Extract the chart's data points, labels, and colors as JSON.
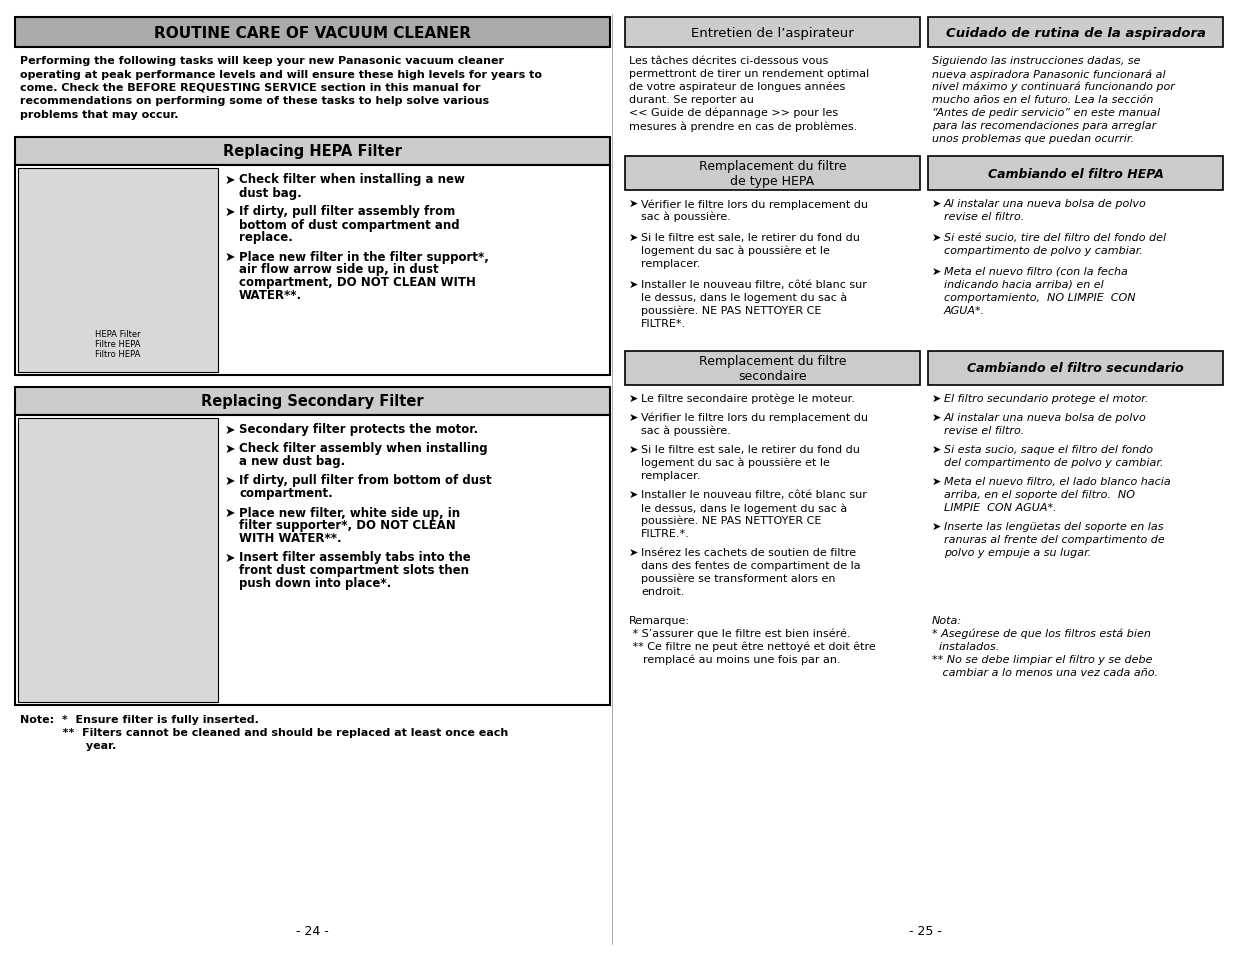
{
  "page_bg": "#ffffff",
  "header_bg": "#aaaaaa",
  "box_bg": "#cccccc",
  "left_title": "ROUTINE CARE OF VACUUM CLEANER",
  "left_intro_line1": "Performing the following tasks will keep your new Panasonic vacuum cleaner",
  "left_intro_line2": "operating at peak performance levels and will ensure these high levels for years to",
  "left_intro_line3": "come. Check the BEFORE REQUESTING SERVICE section in this manual for",
  "left_intro_line4": "recommendations on performing some of these tasks to help solve various",
  "left_intro_line5": "problems that may occur.",
  "hepa_title": "Replacing HEPA Filter",
  "hepa_label": "HEPA Filter\nFiltre HEPA\nFiltro HEPA",
  "hepa_bullets": [
    [
      "Check filter when installing a new",
      "dust bag."
    ],
    [
      "If dirty, pull filter assembly from",
      "bottom of dust compartment and",
      "replace."
    ],
    [
      "Place new filter in the filter support*,",
      "air flow arrow side up, in dust",
      "compartment, DO NOT CLEAN WITH",
      "WATER**."
    ]
  ],
  "hepa_bold_prefix": [
    "",
    "If dirty, pull filter assembly from",
    "Place new filter in the filter support*,"
  ],
  "secondary_title": "Replacing Secondary Filter",
  "secondary_bullets": [
    [
      "Secondary filter protects the motor."
    ],
    [
      "Check filter assembly when installing",
      "a new dust bag."
    ],
    [
      "If dirty, pull filter from bottom of dust",
      "compartment."
    ],
    [
      "Place new filter, white side up, in",
      "filter supporter*, DO NOT CLEAN",
      "WITH WATER**."
    ],
    [
      "Insert filter assembly tabs into the",
      "front dust compartment slots then",
      "push down into place*."
    ]
  ],
  "note_line1": "Note:  *  Ensure filter is fully inserted.",
  "note_line2": "           **  Filters cannot be cleaned and should be replaced at least once each",
  "note_line3": "                 year.",
  "page_left": "- 24 -",
  "page_right": "- 25 -",
  "fr_routine_title": "Entretien de l’aspirateur",
  "es_routine_title": "Cuidado de rutina de la aspiradora",
  "fr_routine_body": [
    "Les tâches décrites ci-dessous vous",
    "permettront de tirer un rendement optimal",
    "de votre aspirateur de longues années",
    "durant. Se reporter au",
    "<< Guide de dépannage >> pour les",
    "mesures à prendre en cas de problèmes."
  ],
  "es_routine_body": [
    "Siguiendo las instrucciones dadas, se",
    "nueva aspiradora Panasonic funcionará al",
    "nivel máximo y continuará funcionando por",
    "mucho años en el futuro. Lea la sección",
    "“Antes de pedir servicio” en este manual",
    "para las recomendaciones para arreglar",
    "unos problemas que puedan ocurrir."
  ],
  "fr_hepa_title": "Remplacement du filtre\nde type HEPA",
  "es_hepa_title": "Cambiando el filtro HEPA",
  "fr_hepa_bullets": [
    [
      "Vérifier le filtre lors du remplacement du",
      "sac à poussière."
    ],
    [
      "Si le filtre est sale, le retirer du fond du",
      "logement du sac à poussière et le",
      "remplacer."
    ],
    [
      "Installer le nouveau filtre, côté blanc sur",
      "le dessus, dans le logement du sac à",
      "poussière. NE PAS NETTOYER CE",
      "FILTRE*."
    ]
  ],
  "es_hepa_bullets": [
    [
      "Al instalar una nueva bolsa de polvo",
      "revise el filtro."
    ],
    [
      "Si esté sucio, tire del filtro del fondo del",
      "compartimento de polvo y cambiar."
    ],
    [
      "Meta el nuevo filtro (con la fecha",
      "indicando hacia arriba) en el",
      "comportamiento,  NO LIMPIE  CON",
      "AGUA*."
    ]
  ],
  "fr_secondary_title": "Remplacement du filtre\nsecondaire",
  "es_secondary_title": "Cambiando el filtro secundario",
  "fr_secondary_bullets": [
    [
      "Le filtre secondaire protège le moteur."
    ],
    [
      "Vérifier le filtre lors du remplacement du",
      "sac à poussière."
    ],
    [
      "Si le filtre est sale, le retirer du fond du",
      "logement du sac à poussière et le",
      "remplacer."
    ],
    [
      "Installer le nouveau filtre, côté blanc sur",
      "le dessus, dans le logement du sac à",
      "poussière. NE PAS NETTOYER CE",
      "FILTRE.*."
    ],
    [
      "Insérez les cachets de soutien de filtre",
      "dans des fentes de compartiment de la",
      "poussière se transforment alors en",
      "endroit."
    ]
  ],
  "es_secondary_bullets": [
    [
      "El filtro secundario protege el motor."
    ],
    [
      "Al instalar una nueva bolsa de polvo",
      "revise el filtro."
    ],
    [
      "Si esta sucio, saque el filtro del fondo",
      "del compartimento de polvo y cambiar."
    ],
    [
      "Meta el nuevo filtro, el lado blanco hacia",
      "arriba, en el soporte del filtro.  NO",
      "LIMPIE  CON AGUA*."
    ],
    [
      "Inserte las lengüetas del soporte en las",
      "ranuras al frente del compartimento de",
      "polvo y empuje a su lugar."
    ]
  ],
  "fr_notes": [
    "Remarque:",
    " * S’assurer que le filtre est bien inséré.",
    " ** Ce filtre ne peut être nettoyé et doit être",
    "    remplacé au moins une fois par an."
  ],
  "es_notes": [
    "Nota:",
    "* Asegúrese de que los filtros está bien",
    "  instalados.",
    "** No se debe limpiar el filtro y se debe",
    "   cambiar a lo menos una vez cada año."
  ]
}
